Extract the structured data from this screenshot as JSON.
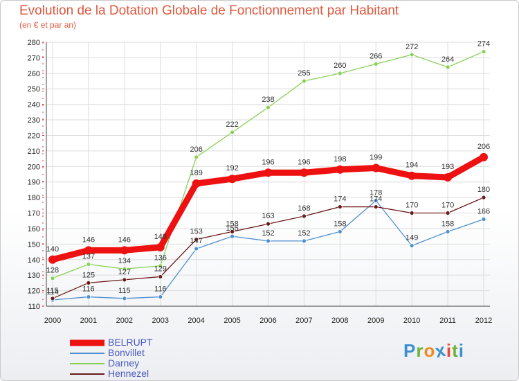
{
  "title": "Evolution de la Dotation Globale de Fonctionnement par Habitant",
  "subtitle": "(en € et par an)",
  "logo": {
    "text": "Proxiti",
    "colors": [
      "#3a8fd1",
      "#6ab533",
      "#f08a24",
      "#3a8fd1",
      "#e84a3c",
      "#6ab533",
      "#3a8fd1"
    ]
  },
  "chart_data": {
    "type": "line",
    "title": "Evolution de la Dotation Globale de Fonctionnement par Habitant",
    "ylabel": "(en € et par an)",
    "x": [
      "2000",
      "2001",
      "2002",
      "2003",
      "2004",
      "2005",
      "2006",
      "2007",
      "2008",
      "2009",
      "2010",
      "2011",
      "2012"
    ],
    "ylim": [
      110,
      280
    ],
    "yticks": [
      110,
      120,
      130,
      140,
      150,
      160,
      170,
      180,
      190,
      200,
      210,
      220,
      230,
      240,
      250,
      260,
      270,
      280
    ],
    "legend_position": "bottom-left",
    "series": [
      {
        "name": "BELRUPT",
        "color": "#ee1111",
        "values": [
          140,
          146,
          146,
          148,
          189,
          192,
          196,
          196,
          198,
          199,
          194,
          193,
          206
        ]
      },
      {
        "name": "Bonvillet",
        "color": "#4f8fd0",
        "values": [
          114,
          116,
          115,
          116,
          147,
          155,
          152,
          152,
          158,
          178,
          149,
          158,
          166
        ]
      },
      {
        "name": "Darney",
        "color": "#88d155",
        "values": [
          128,
          137,
          134,
          136,
          206,
          222,
          238,
          255,
          260,
          266,
          272,
          264,
          274
        ]
      },
      {
        "name": "Hennezel",
        "color": "#6b1a1a",
        "values": [
          115,
          125,
          127,
          129,
          153,
          158,
          163,
          168,
          174,
          174,
          170,
          170,
          180
        ]
      }
    ]
  }
}
